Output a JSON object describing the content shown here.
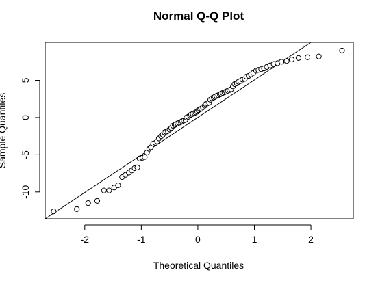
{
  "chart_data": {
    "type": "scatter",
    "title": "Normal Q-Q Plot",
    "xlabel": "Theoretical Quantiles",
    "ylabel": "Sample Quantiles",
    "xlim": [
      -2.7,
      2.75
    ],
    "ylim": [
      -13.6,
      10.1
    ],
    "xticks": [
      -2,
      -1,
      0,
      1,
      2
    ],
    "yticks": [
      -10,
      -5,
      0,
      5
    ],
    "xtick_labels": [
      "-2",
      "-1",
      "0",
      "1",
      "2"
    ],
    "ytick_labels": [
      "-10",
      "-5",
      "0",
      "5"
    ],
    "grid": false,
    "legend": "none",
    "reference_line": {
      "x1": -2.7,
      "y1": -13.6,
      "x2": 2.0,
      "y2": 10.1
    },
    "series": [
      {
        "x": [
          -2.55,
          -2.14,
          -1.94,
          -1.78,
          -1.66,
          -1.57,
          -1.48,
          -1.41,
          -1.34,
          -1.28,
          -1.22,
          -1.17,
          -1.12,
          -1.07,
          -1.03,
          -0.98,
          -0.94,
          -0.9,
          -0.86,
          -0.83,
          -0.79,
          -0.75,
          -0.72,
          -0.69,
          -0.65,
          -0.62,
          -0.59,
          -0.56,
          -0.53,
          -0.5,
          -0.47,
          -0.44,
          -0.41,
          -0.39,
          -0.36,
          -0.33,
          -0.3,
          -0.28,
          -0.25,
          -0.22,
          -0.2,
          -0.17,
          -0.14,
          -0.12,
          -0.09,
          -0.06,
          -0.04,
          -0.01,
          0.01,
          0.04,
          0.06,
          0.09,
          0.12,
          0.14,
          0.17,
          0.2,
          0.22,
          0.25,
          0.28,
          0.3,
          0.33,
          0.36,
          0.39,
          0.41,
          0.44,
          0.47,
          0.5,
          0.53,
          0.56,
          0.59,
          0.62,
          0.65,
          0.69,
          0.72,
          0.75,
          0.79,
          0.83,
          0.86,
          0.9,
          0.94,
          0.98,
          1.03,
          1.07,
          1.12,
          1.17,
          1.22,
          1.28,
          1.34,
          1.41,
          1.48,
          1.57,
          1.66,
          1.78,
          1.94,
          2.14,
          2.55
        ],
        "y": [
          -12.6,
          -12.3,
          -11.5,
          -11.2,
          -9.8,
          -9.8,
          -9.4,
          -9.1,
          -8.0,
          -7.7,
          -7.4,
          -7.1,
          -6.8,
          -6.7,
          -5.5,
          -5.4,
          -5.3,
          -4.7,
          -4.2,
          -4.0,
          -3.5,
          -3.4,
          -3.2,
          -2.8,
          -2.5,
          -2.3,
          -2.0,
          -1.9,
          -1.8,
          -1.6,
          -1.4,
          -1.1,
          -1.0,
          -0.9,
          -0.8,
          -0.7,
          -0.6,
          -0.5,
          -0.4,
          -0.3,
          0.0,
          0.1,
          0.3,
          0.4,
          0.5,
          0.6,
          0.7,
          0.8,
          1.0,
          1.1,
          1.2,
          1.4,
          1.6,
          1.8,
          1.9,
          2.0,
          2.4,
          2.6,
          2.7,
          2.8,
          2.9,
          3.0,
          3.1,
          3.2,
          3.3,
          3.4,
          3.5,
          3.6,
          3.7,
          3.8,
          4.2,
          4.5,
          4.6,
          4.8,
          4.9,
          5.1,
          5.2,
          5.5,
          5.6,
          5.8,
          6.0,
          6.3,
          6.4,
          6.5,
          6.6,
          6.8,
          7.0,
          7.2,
          7.3,
          7.5,
          7.6,
          7.8,
          8.0,
          8.1,
          8.2,
          9.0
        ]
      }
    ]
  }
}
